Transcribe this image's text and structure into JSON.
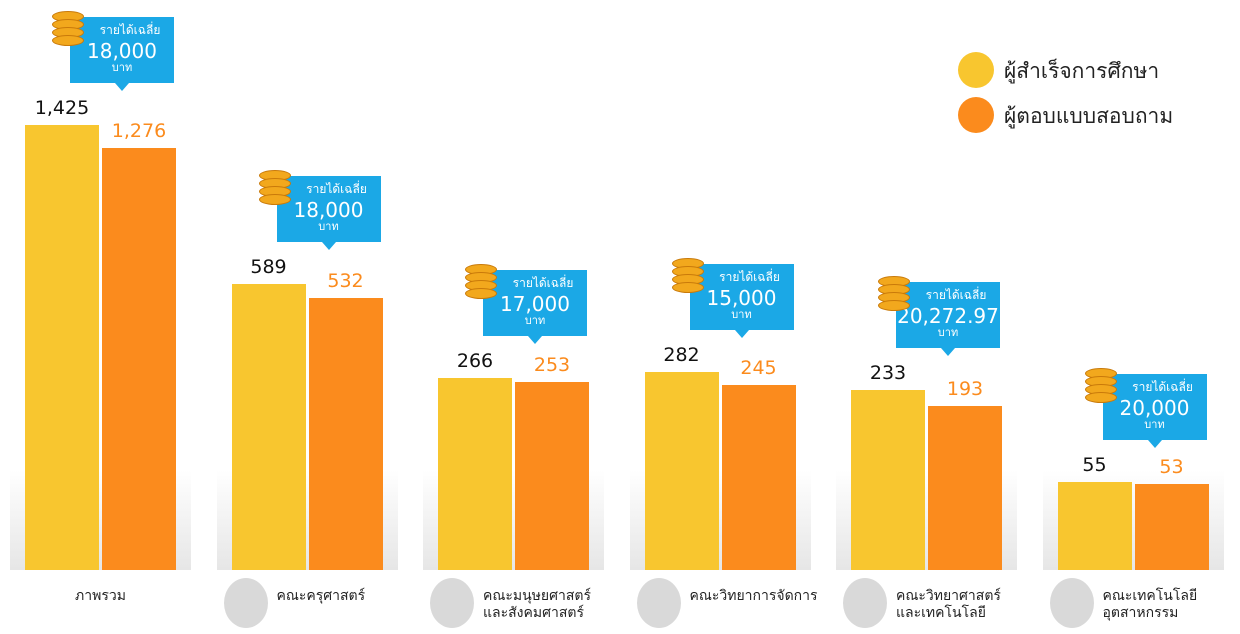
{
  "chart_data": {
    "type": "bar",
    "categories": [
      "ภาพรวม",
      "คณะครุศาสตร์",
      "คณะมนุษยศาสตร์\nและสังคมศาสตร์",
      "คณะวิทยาการจัดการ",
      "คณะวิทยาศาสตร์\nและเทคโนโลยี",
      "คณะเทคโนโลยี\nอุตสาหกรรม"
    ],
    "series": [
      {
        "name": "ผู้สำเร็จการศึกษา",
        "color": "#f8c62f",
        "values": [
          1425,
          589,
          266,
          282,
          233,
          55
        ],
        "value_labels": [
          "1,425",
          "589",
          "266",
          "282",
          "233",
          "55"
        ]
      },
      {
        "name": "ผู้ตอบแบบสอบถาม",
        "color": "#fb8b1d",
        "values": [
          1276,
          532,
          253,
          245,
          193,
          53
        ],
        "value_labels": [
          "1,276",
          "532",
          "253",
          "245",
          "193",
          "53"
        ]
      }
    ],
    "income": {
      "label": "รายได้เฉลี่ย",
      "unit": "บาท",
      "values": [
        18000,
        18000,
        17000,
        15000,
        20272.97,
        20000
      ],
      "value_labels": [
        "18,000",
        "18,000",
        "17,000",
        "15,000",
        "20,272.97",
        "20,000"
      ]
    },
    "legend": "top-right"
  }
}
